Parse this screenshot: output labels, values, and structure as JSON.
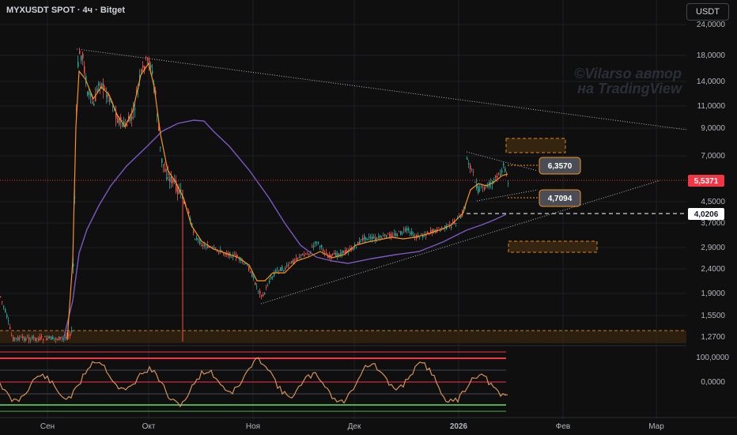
{
  "header": {
    "symbol_title": "MYXUSDT SPOT · 4ч · Bitget",
    "currency": "USDT"
  },
  "watermark": {
    "line1": "©Vilarso автор",
    "line2": "на TradingView"
  },
  "price_axis": {
    "ticks": [
      "24,0000",
      "18,0000",
      "14,0000",
      "11,0000",
      "9,0000",
      "7,0000",
      "4,5000",
      "3,7000",
      "2,9000",
      "2,4000",
      "1,9000",
      "1,5500",
      "1,2700"
    ]
  },
  "price_labels": {
    "last_price": "5,5371",
    "level_line": "4,0206",
    "callout_upper": "6,3570",
    "callout_lower": "4,7094"
  },
  "oscillator_axis": {
    "ticks": [
      "100,0000",
      "0,0000"
    ]
  },
  "time_axis": {
    "labels": [
      "Сен",
      "Окт",
      "Ноя",
      "Дек",
      "2026",
      "Фев",
      "Мар"
    ]
  },
  "colors": {
    "background": "#0f0f0f",
    "candle_up": "#26a69a",
    "candle_down": "#ef5350",
    "ma_fast": "#f7931a",
    "ma_slow": "#7e57c2",
    "last_price": "#f23645",
    "zone": "#f7931a"
  }
}
